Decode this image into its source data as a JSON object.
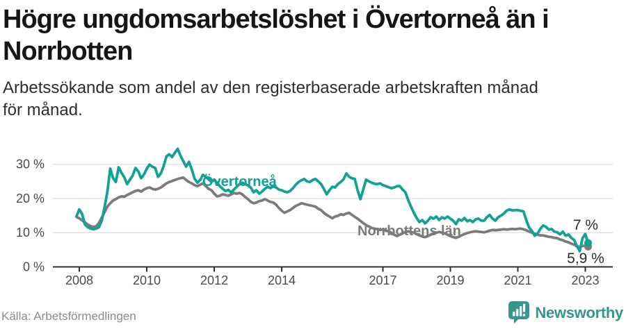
{
  "header": {
    "title": "Högre ungdomsarbetslöshet i Övertorneå än i Norrbotten",
    "subtitle": "Arbetssökande som andel av den registerbaserade arbetskraften månad för månad."
  },
  "footer": {
    "source": "Källa: Arbetsförmedlingen",
    "brand": "Newsworthy"
  },
  "colors": {
    "overtornea": "#12a192",
    "norrbotten": "#7b7b7b",
    "grid": "#dedede",
    "axis": "#2e2e2e",
    "tick_label": "#4a4a4a",
    "end_label": "#2b2b2b",
    "brand_teal": "#35968e"
  },
  "chart_data": {
    "type": "line",
    "x_start": 2007.9167,
    "points_per_year": 12,
    "x_end": 2023.0833,
    "ylim": [
      0,
      36
    ],
    "grid": true,
    "legend_position": "inline-labels",
    "y_ticks": [
      {
        "value": 0,
        "label": "0 %"
      },
      {
        "value": 10,
        "label": "10 %"
      },
      {
        "value": 20,
        "label": "20 %"
      },
      {
        "value": 30,
        "label": "30 %"
      }
    ],
    "x_ticks": [
      {
        "year": 2008,
        "label": "2008"
      },
      {
        "year": 2010,
        "label": "2010"
      },
      {
        "year": 2012,
        "label": "2012"
      },
      {
        "year": 2014,
        "label": "2014"
      },
      {
        "year": 2017,
        "label": "2017"
      },
      {
        "year": 2019,
        "label": "2019"
      },
      {
        "year": 2021,
        "label": "2021"
      },
      {
        "year": 2023,
        "label": "2023"
      }
    ],
    "series": [
      {
        "name": "Norrbottens län",
        "color": "#7b7b7b",
        "end_label": "5,9 %",
        "end_value": 5.9,
        "values": [
          14.6,
          14.2,
          13.6,
          13.0,
          12.4,
          11.9,
          11.7,
          11.9,
          12.8,
          14.4,
          16.0,
          17.6,
          18.6,
          19.4,
          19.8,
          20.3,
          20.6,
          20.5,
          21.0,
          21.4,
          21.8,
          22.2,
          22.4,
          22.0,
          22.6,
          23.0,
          23.2,
          22.8,
          22.6,
          22.8,
          23.2,
          23.8,
          24.4,
          24.8,
          25.1,
          25.4,
          25.7,
          25.9,
          26.1,
          25.4,
          24.8,
          24.4,
          23.9,
          23.6,
          24.0,
          24.4,
          23.6,
          22.8,
          22.4,
          21.4,
          20.6,
          20.8,
          21.2,
          21.0,
          20.8,
          21.2,
          21.6,
          21.4,
          21.6,
          21.2,
          20.4,
          19.8,
          19.0,
          18.6,
          18.8,
          19.2,
          19.4,
          19.8,
          19.4,
          19.0,
          18.8,
          18.2,
          17.2,
          16.4,
          15.8,
          16.2,
          16.6,
          17.2,
          17.8,
          18.2,
          18.6,
          18.4,
          18.2,
          18.0,
          17.8,
          17.6,
          17.0,
          16.6,
          15.8,
          15.2,
          14.7,
          14.2,
          14.7,
          14.9,
          15.4,
          15.2,
          15.6,
          15.8,
          15.2,
          14.6,
          14.1,
          13.4,
          12.8,
          12.2,
          11.8,
          11.4,
          11.2,
          11.0,
          10.8,
          10.9,
          10.6,
          10.4,
          10.0,
          9.4,
          9.0,
          9.4,
          9.8,
          10.2,
          10.4,
          10.2,
          10.0,
          9.6,
          9.2,
          8.9,
          8.7,
          9.0,
          9.4,
          9.8,
          10.0,
          10.2,
          10.0,
          9.8,
          9.4,
          9.0,
          8.7,
          8.5,
          8.8,
          9.2,
          9.6,
          9.9,
          10.1,
          10.3,
          10.4,
          10.3,
          10.2,
          10.1,
          10.3,
          10.6,
          10.8,
          10.7,
          10.8,
          10.9,
          11.0,
          10.9,
          11.0,
          11.1,
          11.0,
          11.1,
          11.2,
          11.0,
          10.7,
          10.3,
          10.0,
          9.7,
          9.4,
          9.2,
          9.2,
          9.0,
          8.8,
          8.7,
          8.5,
          8.4,
          8.0,
          7.8,
          7.4,
          7.2,
          6.8,
          6.5,
          6.0,
          5.8,
          6.1,
          6.2,
          5.9
        ]
      },
      {
        "name": "Övertorneå",
        "color": "#12a192",
        "end_label": "7 %",
        "end_value": 7.0,
        "values": [
          14.8,
          16.8,
          15.5,
          12.4,
          11.6,
          11.2,
          11.0,
          11.2,
          11.6,
          13.5,
          17.5,
          22.0,
          28.7,
          26.0,
          24.8,
          29.1,
          27.5,
          26.2,
          24.2,
          25.5,
          26.7,
          28.9,
          27.9,
          25.9,
          27.0,
          28.7,
          29.9,
          29.3,
          28.9,
          26.3,
          27.3,
          29.5,
          32.3,
          32.9,
          32.1,
          33.3,
          34.5,
          32.5,
          30.9,
          29.3,
          30.7,
          28.5,
          25.8,
          24.6,
          25.4,
          26.9,
          26.3,
          25.6,
          24.8,
          25.5,
          24.6,
          23.6,
          22.8,
          22.2,
          22.5,
          21.8,
          22.6,
          23.4,
          24.2,
          24.6,
          24.2,
          23.8,
          23.2,
          21.8,
          22.4,
          21.4,
          22.0,
          22.8,
          23.4,
          23.0,
          23.6,
          23.2,
          22.6,
          22.4,
          22.0,
          21.8,
          22.2,
          23.0,
          24.0,
          24.8,
          25.3,
          25.7,
          25.0,
          24.8,
          25.4,
          25.7,
          25.0,
          24.2,
          22.8,
          21.2,
          22.4,
          23.4,
          23.2,
          24.2,
          24.8,
          25.6,
          27.3,
          26.3,
          25.9,
          25.7,
          22.4,
          19.8,
          22.6,
          25.5,
          25.0,
          24.6,
          24.3,
          24.2,
          24.4,
          23.9,
          23.6,
          23.3,
          23.0,
          23.2,
          23.6,
          23.6,
          22.6,
          21.8,
          19.5,
          17.6,
          15.8,
          14.3,
          13.1,
          13.7,
          12.7,
          13.5,
          14.5,
          14.1,
          14.7,
          13.7,
          14.5,
          14.1,
          14.7,
          14.1,
          13.5,
          12.5,
          13.9,
          13.5,
          14.3,
          13.3,
          13.7,
          13.1,
          13.9,
          14.1,
          13.5,
          13.5,
          14.5,
          15.2,
          14.1,
          13.5,
          14.5,
          15.0,
          15.6,
          16.4,
          16.8,
          16.5,
          16.6,
          16.6,
          16.4,
          16.2,
          13.7,
          11.5,
          10.5,
          9.1,
          9.7,
          11.1,
          12.1,
          11.7,
          10.9,
          11.1,
          10.3,
          10.1,
          9.5,
          10.3,
          9.1,
          9.5,
          8.5,
          7.9,
          6.1,
          4.6,
          8.4,
          9.6,
          7.0
        ]
      }
    ]
  }
}
